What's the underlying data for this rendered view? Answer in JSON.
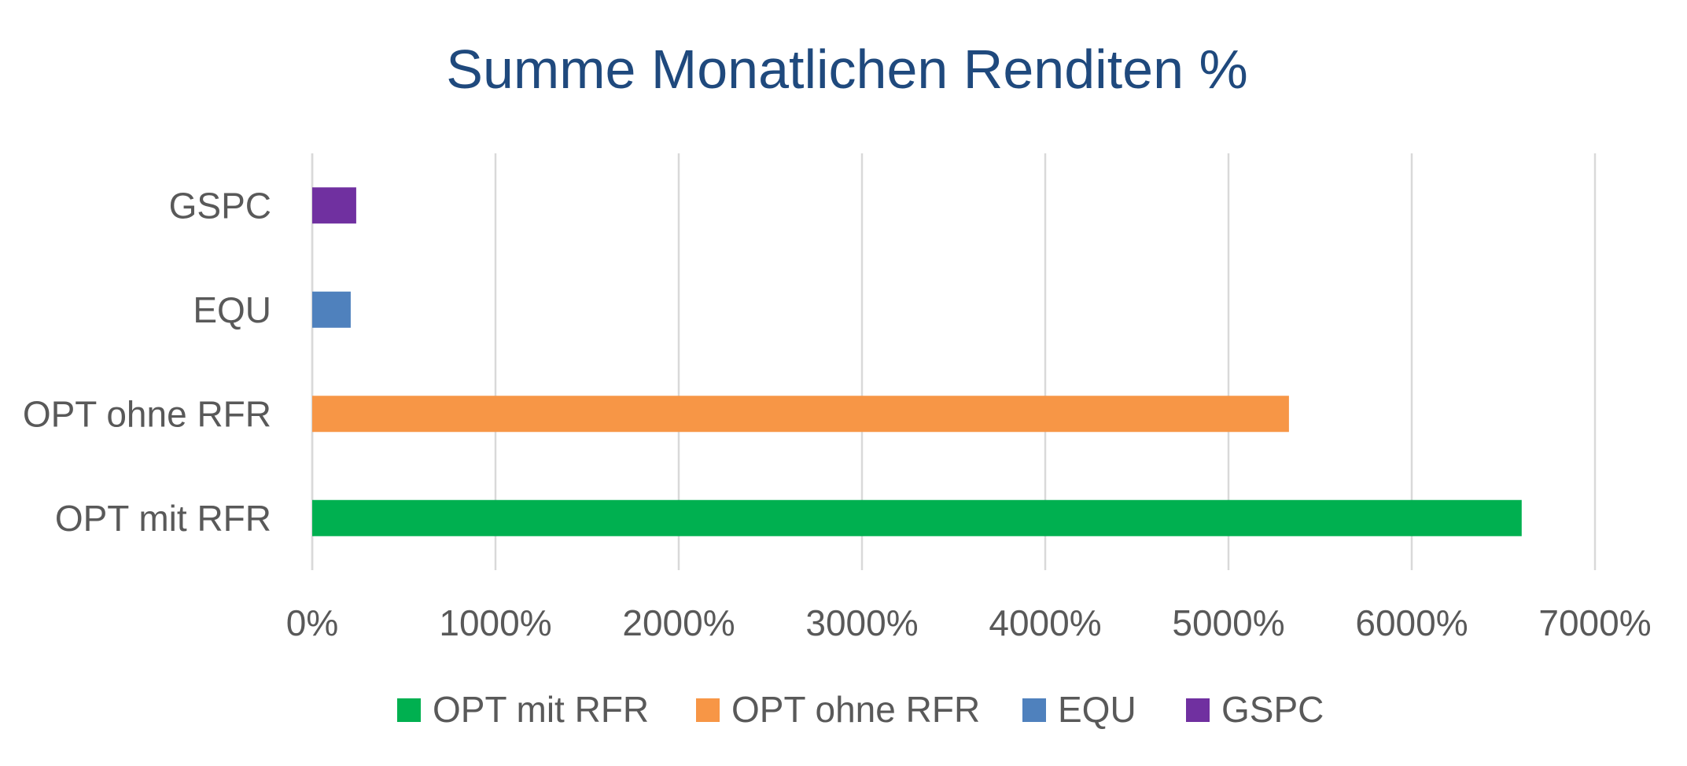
{
  "chart_data": {
    "type": "bar",
    "orientation": "horizontal",
    "title": "Summe Monatlichen Renditen %",
    "categories": [
      "OPT mit RFR",
      "OPT ohne RFR",
      "EQU",
      "GSPC"
    ],
    "values": [
      6600,
      5330,
      210,
      240
    ],
    "colors": [
      "#00b050",
      "#f79646",
      "#4f81bd",
      "#7030a0"
    ],
    "xlim": [
      0,
      7000
    ],
    "xticks": [
      0,
      1000,
      2000,
      3000,
      4000,
      5000,
      6000,
      7000
    ],
    "xtick_labels": [
      "0%",
      "1000%",
      "2000%",
      "3000%",
      "4000%",
      "5000%",
      "6000%",
      "7000%"
    ],
    "grid": true,
    "legend_position": "bottom",
    "legend": [
      {
        "label": "OPT mit RFR",
        "color": "#00b050"
      },
      {
        "label": "OPT ohne RFR",
        "color": "#f79646"
      },
      {
        "label": "EQU",
        "color": "#4f81bd"
      },
      {
        "label": "GSPC",
        "color": "#7030a0"
      }
    ]
  }
}
